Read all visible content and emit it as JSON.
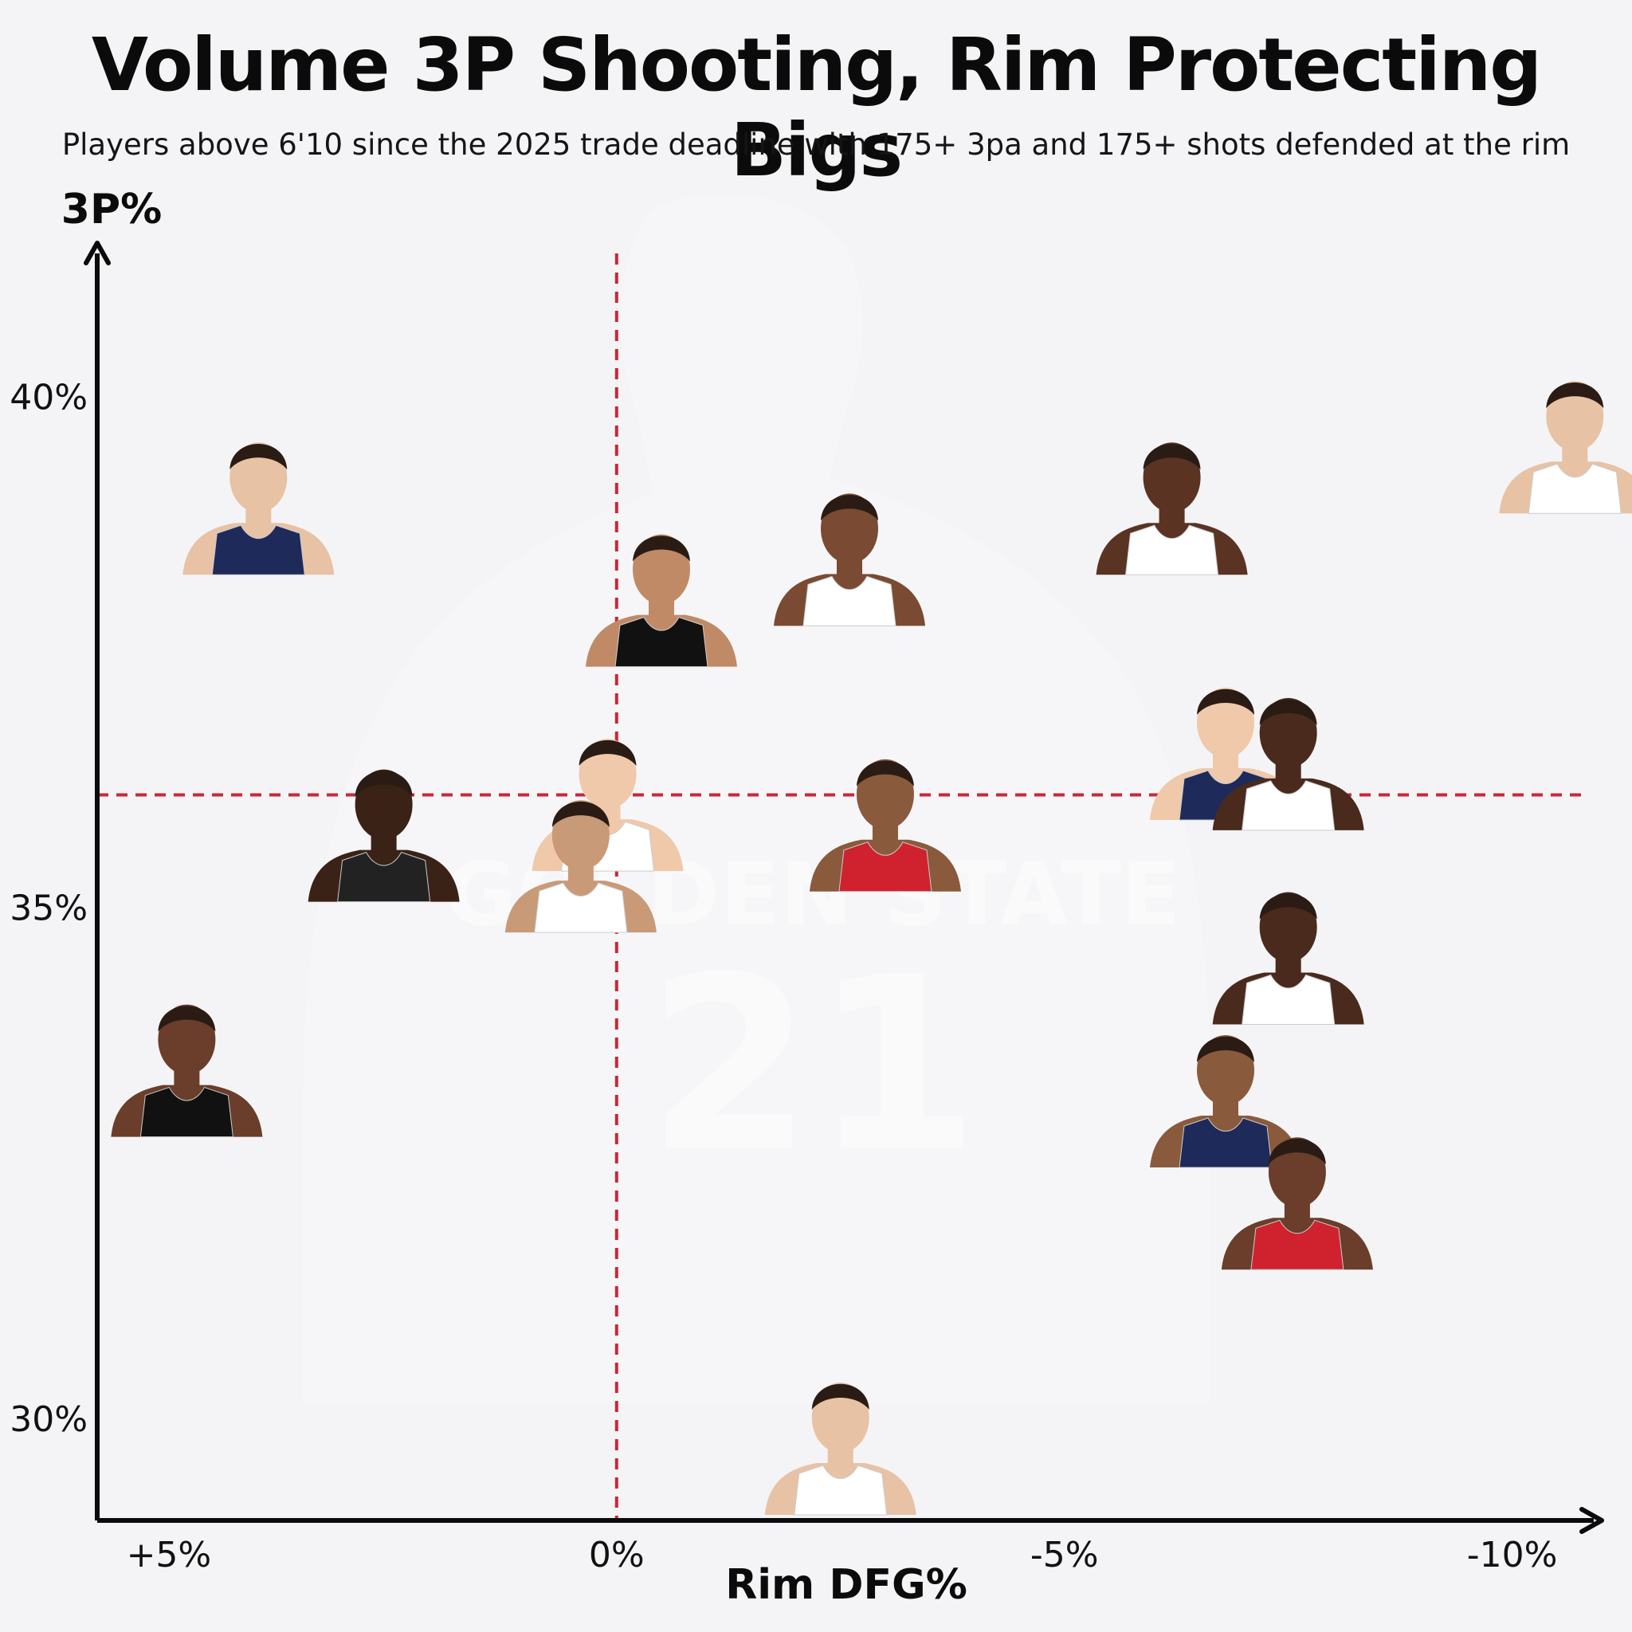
{
  "header": {
    "title": "Volume 3P Shooting, Rim Protecting Bigs",
    "subtitle": "Players above 6'10 since the 2025 trade deadline with 175+ 3pa and 175+ shots defended at the rim"
  },
  "background": {
    "jersey_text": "GOLDEN STATE",
    "jersey_number": "21"
  },
  "colors": {
    "axis": "#0b0b0b",
    "reference_line": "#c8283a",
    "background": "#f4f4f6"
  },
  "chart_data": {
    "type": "scatter",
    "xlabel": "Rim DFG%",
    "ylabel": "3P%",
    "xlim": [
      5.8,
      -11.0
    ],
    "ylim": [
      29.0,
      41.5
    ],
    "x_reversed": true,
    "x_ticks": [
      {
        "value": 5,
        "label": "+5%"
      },
      {
        "value": 0,
        "label": "0%"
      },
      {
        "value": -5,
        "label": "-5%"
      },
      {
        "value": -10,
        "label": "-10%"
      }
    ],
    "y_ticks": [
      {
        "value": 40,
        "label": "40%"
      },
      {
        "value": 35,
        "label": "35%"
      },
      {
        "value": 30,
        "label": "30%"
      }
    ],
    "reference_lines": {
      "x": 0,
      "y": 36.1
    },
    "grid": false,
    "legend": "none",
    "marker": "player headshot",
    "points": [
      {
        "x": 4.0,
        "y": 38.8
      },
      {
        "x": -0.5,
        "y": 37.9
      },
      {
        "x": -2.6,
        "y": 38.3
      },
      {
        "x": -6.2,
        "y": 38.8
      },
      {
        "x": -10.7,
        "y": 39.4
      },
      {
        "x": -6.8,
        "y": 36.4
      },
      {
        "x": -7.5,
        "y": 36.3
      },
      {
        "x": 2.6,
        "y": 35.6
      },
      {
        "x": 0.1,
        "y": 35.9
      },
      {
        "x": 0.4,
        "y": 35.3
      },
      {
        "x": -3.0,
        "y": 35.7
      },
      {
        "x": -7.5,
        "y": 34.4
      },
      {
        "x": 4.8,
        "y": 33.3
      },
      {
        "x": -6.8,
        "y": 33.0
      },
      {
        "x": -7.6,
        "y": 32.0
      },
      {
        "x": -2.5,
        "y": 29.6
      }
    ]
  }
}
